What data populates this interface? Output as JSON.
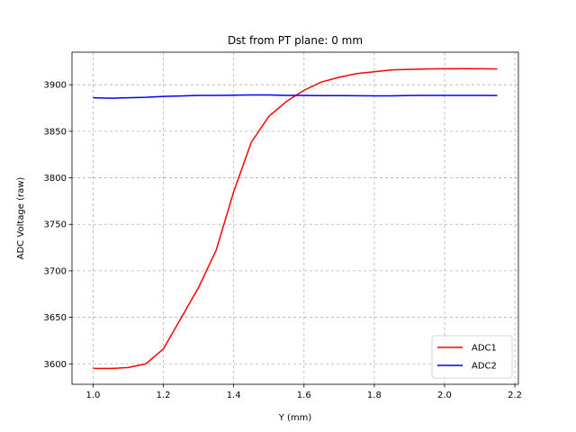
{
  "chart_data": {
    "type": "line",
    "title": "Dst from PT plane: 0 mm",
    "xlabel": "Y (mm)",
    "ylabel": "ADC Voltage (raw)",
    "xlim": [
      0.94,
      2.21
    ],
    "ylim": [
      3578,
      3935
    ],
    "xticks": [
      1.0,
      1.2,
      1.4,
      1.6,
      1.8,
      2.0,
      2.2
    ],
    "xtick_labels": [
      "1.0",
      "1.2",
      "1.4",
      "1.6",
      "1.8",
      "2.0",
      "2.2"
    ],
    "yticks": [
      3600,
      3650,
      3700,
      3750,
      3800,
      3850,
      3900
    ],
    "ytick_labels": [
      "3600",
      "3650",
      "3700",
      "3750",
      "3800",
      "3850",
      "3900"
    ],
    "grid": true,
    "legend_position": "lower-right",
    "x": [
      1.0,
      1.05,
      1.1,
      1.15,
      1.2,
      1.25,
      1.3,
      1.35,
      1.4,
      1.45,
      1.5,
      1.55,
      1.6,
      1.65,
      1.7,
      1.75,
      1.8,
      1.85,
      1.9,
      1.95,
      2.0,
      2.05,
      2.1,
      2.15
    ],
    "series": [
      {
        "name": "ADC1",
        "color": "#ff0000",
        "values": [
          3595,
          3595,
          3596,
          3600,
          3616,
          3649,
          3682,
          3722,
          3785,
          3838,
          3866,
          3882,
          3894,
          3903,
          3908,
          3912,
          3914,
          3916,
          3916.5,
          3917,
          3917.2,
          3917.3,
          3917.2,
          3917
        ]
      },
      {
        "name": "ADC2",
        "color": "#0000ff",
        "values": [
          3886,
          3885.5,
          3886,
          3886.5,
          3887.5,
          3888,
          3888.5,
          3888.5,
          3888.8,
          3889,
          3889,
          3888.6,
          3888.5,
          3888.3,
          3888.3,
          3888.2,
          3888.1,
          3888.1,
          3888.4,
          3888.5,
          3888.6,
          3888.6,
          3888.5,
          3888.4
        ]
      }
    ]
  }
}
